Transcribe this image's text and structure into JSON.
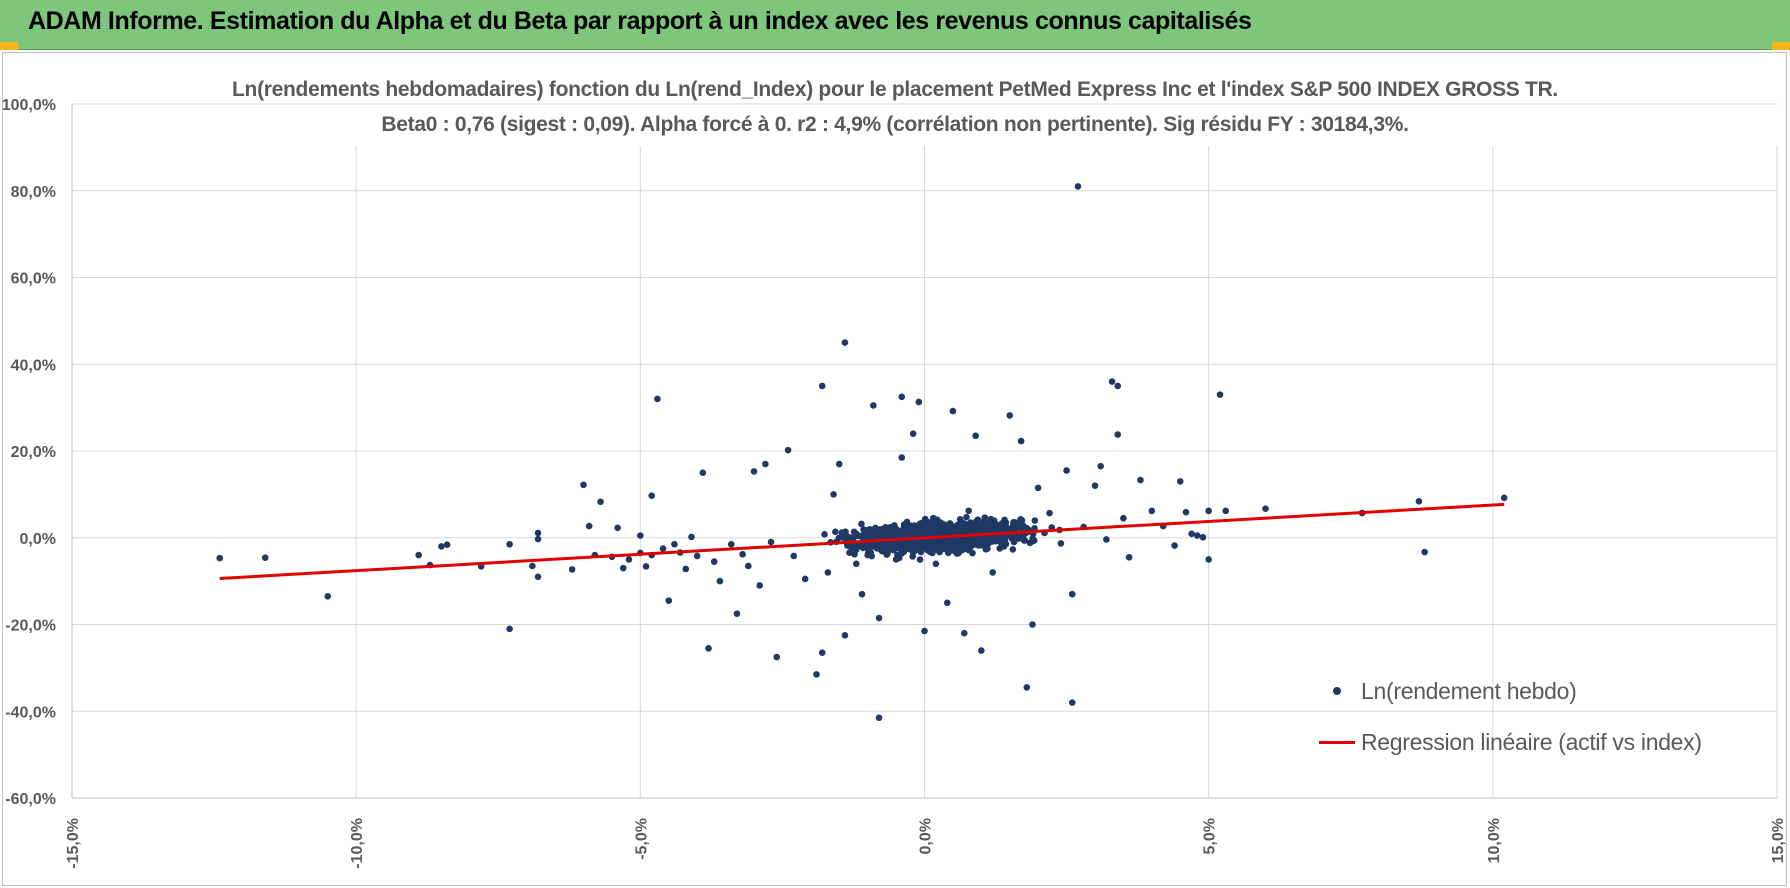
{
  "banner": {
    "title": "ADAM Informe. Estimation du Alpha et du Beta par rapport à un index avec les revenus connus capitalisés"
  },
  "chart_data": {
    "type": "scatter",
    "title": "Ln(rendements hebdomadaires) fonction du Ln(rend_Index) pour le placement PetMed Express Inc et l'index S&P 500 INDEX GROSS TR.",
    "subtitle": "Beta0 : 0,76 (sigest : 0,09).  Alpha forcé à 0. r2 : 4,9% (corrélation non pertinente). Sig résidu FY : 30184,3%.",
    "xlabel": "",
    "ylabel": "",
    "xlim": [
      -15,
      15
    ],
    "ylim": [
      -60,
      100
    ],
    "x_ticks": [
      "-15,0%",
      "-10,0%",
      "-5,0%",
      "0,0%",
      "5,0%",
      "10,0%",
      "15,0%"
    ],
    "y_ticks": [
      "100,0%",
      "80,0%",
      "60,0%",
      "40,0%",
      "20,0%",
      "0,0%",
      "-20,0%",
      "-40,0%",
      "-60,0%"
    ],
    "grid": true,
    "legend_position": "bottom-right",
    "series": [
      {
        "name": "Ln(rendement hebdo)",
        "kind": "scatter",
        "color": "#1f3864",
        "points": [
          [
            -12.4,
            -4.7
          ],
          [
            -11.6,
            -4.6
          ],
          [
            -10.5,
            -13.5
          ],
          [
            -8.9,
            -4
          ],
          [
            -8.7,
            -6.3
          ],
          [
            -8.5,
            -2
          ],
          [
            -8.4,
            -1.6
          ],
          [
            -7.8,
            -6.6
          ],
          [
            -7.3,
            -21
          ],
          [
            -7.3,
            -1.5
          ],
          [
            -6.9,
            -6.5
          ],
          [
            -6.8,
            1.1
          ],
          [
            -6.8,
            -9
          ],
          [
            -6.8,
            -0.3
          ],
          [
            -6.2,
            -7.3
          ],
          [
            -6,
            12.2
          ],
          [
            -5.9,
            2.7
          ],
          [
            -5.8,
            -4
          ],
          [
            -5.7,
            8.3
          ],
          [
            -5.5,
            -4.4
          ],
          [
            -5.4,
            2.3
          ],
          [
            -5.3,
            -7
          ],
          [
            -5.2,
            -5
          ],
          [
            -5,
            -3.5
          ],
          [
            -5,
            0.5
          ],
          [
            -4.9,
            -6.6
          ],
          [
            -4.8,
            9.7
          ],
          [
            -4.8,
            -4
          ],
          [
            -4.7,
            32
          ],
          [
            -4.6,
            -2.5
          ],
          [
            -4.5,
            -14.5
          ],
          [
            -4.4,
            -1.5
          ],
          [
            -4.3,
            -3.4
          ],
          [
            -4.2,
            -7.2
          ],
          [
            -4.1,
            0.2
          ],
          [
            -4,
            -4.2
          ],
          [
            -3.9,
            15
          ],
          [
            -3.8,
            -25.5
          ],
          [
            -3.7,
            -5.5
          ],
          [
            -3.6,
            -10
          ],
          [
            -3.4,
            -1.5
          ],
          [
            -3.3,
            -17.5
          ],
          [
            -3.2,
            -3.8
          ],
          [
            -3.1,
            -6.5
          ],
          [
            -3,
            15.3
          ],
          [
            -2.9,
            -11
          ],
          [
            -2.8,
            17
          ],
          [
            -2.7,
            -1
          ],
          [
            -2.6,
            -27.5
          ],
          [
            -2.4,
            20.2
          ],
          [
            -2.3,
            -4.2
          ],
          [
            -2.1,
            -9.5
          ],
          [
            -1.9,
            -31.5
          ],
          [
            -1.8,
            -26.5
          ],
          [
            -1.8,
            35
          ],
          [
            -1.7,
            -8
          ],
          [
            -1.6,
            10
          ],
          [
            -1.5,
            17
          ],
          [
            -1.4,
            45
          ],
          [
            -1.4,
            -22.5
          ],
          [
            -1.2,
            -6
          ],
          [
            -1.1,
            -13
          ],
          [
            -1,
            -4
          ],
          [
            -0.9,
            30.5
          ],
          [
            -0.8,
            -41.5
          ],
          [
            -0.8,
            -18.5
          ],
          [
            -0.6,
            -0.5
          ],
          [
            -0.5,
            -5
          ],
          [
            -0.4,
            18.5
          ],
          [
            -0.4,
            32.5
          ],
          [
            -0.2,
            24
          ],
          [
            -0.1,
            31.3
          ],
          [
            0,
            -21.5
          ],
          [
            0.2,
            -6
          ],
          [
            0.4,
            -15
          ],
          [
            0.5,
            29.2
          ],
          [
            0.6,
            0.3
          ],
          [
            0.7,
            -22
          ],
          [
            0.9,
            23.5
          ],
          [
            1,
            -26
          ],
          [
            1.2,
            -8
          ],
          [
            1.4,
            -2
          ],
          [
            1.5,
            28.2
          ],
          [
            1.6,
            3.5
          ],
          [
            1.7,
            22.3
          ],
          [
            1.8,
            -34.5
          ],
          [
            1.9,
            -20
          ],
          [
            2,
            11.5
          ],
          [
            2.2,
            5.7
          ],
          [
            2.4,
            -1.3
          ],
          [
            2.5,
            15.5
          ],
          [
            2.6,
            -38
          ],
          [
            2.6,
            -13
          ],
          [
            2.7,
            81
          ],
          [
            2.8,
            2.5
          ],
          [
            3,
            12
          ],
          [
            3.1,
            16.5
          ],
          [
            3.2,
            -0.4
          ],
          [
            3.3,
            36
          ],
          [
            3.4,
            35
          ],
          [
            3.4,
            23.8
          ],
          [
            3.5,
            4.5
          ],
          [
            3.6,
            -4.5
          ],
          [
            3.8,
            13.3
          ],
          [
            4,
            6.2
          ],
          [
            4.2,
            2.7
          ],
          [
            4.4,
            -1.8
          ],
          [
            4.5,
            13
          ],
          [
            4.6,
            5.9
          ],
          [
            4.7,
            0.9
          ],
          [
            4.8,
            0.5
          ],
          [
            4.9,
            0.1
          ],
          [
            5,
            -5
          ],
          [
            5,
            6.2
          ],
          [
            5.2,
            33
          ],
          [
            5.3,
            6.2
          ],
          [
            6,
            6.7
          ],
          [
            7.7,
            5.7
          ],
          [
            8.7,
            8.4
          ],
          [
            8.8,
            -3.3
          ],
          [
            10.2,
            9.2
          ]
        ],
        "cluster": {
          "n_points": 1100,
          "x_center": 0.3,
          "x_std": 1.45,
          "y_std": 3.2
        }
      },
      {
        "name": "Regression linéaire (actif vs index)",
        "kind": "line",
        "color": "#e00000",
        "points": [
          [
            -12.4,
            -9.4
          ],
          [
            10.2,
            7.7
          ]
        ]
      }
    ]
  }
}
